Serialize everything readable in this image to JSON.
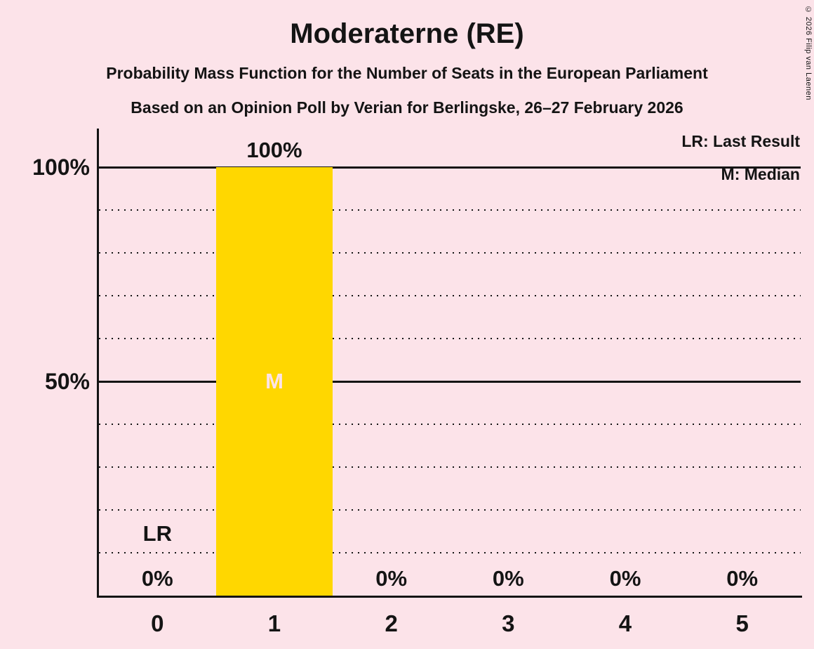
{
  "meta": {
    "copyright": "© 2026 Filip van Laenen"
  },
  "header": {
    "title": "Moderaterne (RE)",
    "subtitle1": "Probability Mass Function for the Number of Seats in the European Parliament",
    "subtitle2": "Based on an Opinion Poll by Verian for Berlingske, 26–27 February 2026"
  },
  "legend": {
    "lr": "LR: Last Result",
    "m": "M: Median"
  },
  "chart_data": {
    "type": "bar",
    "title": "Moderaterne (RE)",
    "subtitle": "Probability Mass Function for the Number of Seats in the European Parliament",
    "source": "Based on an Opinion Poll by Verian for Berlingske, 26–27 February 2026",
    "categories": [
      "0",
      "1",
      "2",
      "3",
      "4",
      "5"
    ],
    "values": [
      0,
      100,
      0,
      0,
      0,
      0
    ],
    "value_labels": [
      "0%",
      "100%",
      "0%",
      "0%",
      "0%",
      "0%"
    ],
    "xlabel": "",
    "ylabel": "",
    "ylim": [
      0,
      100
    ],
    "ytick_labels": {
      "100": "100%",
      "50": "50%"
    },
    "gridlines": {
      "solid": [
        100,
        50
      ],
      "dotted": [
        90,
        80,
        70,
        60,
        40,
        30,
        20,
        10
      ]
    },
    "legend_entries": [
      "LR: Last Result",
      "M: Median"
    ],
    "median_category": "1",
    "median_label": "M",
    "last_result_category": "0",
    "last_result_label": "LR",
    "bar_color": "#FFD700",
    "background_color": "#FCE3E9",
    "text_color": "#141414"
  }
}
